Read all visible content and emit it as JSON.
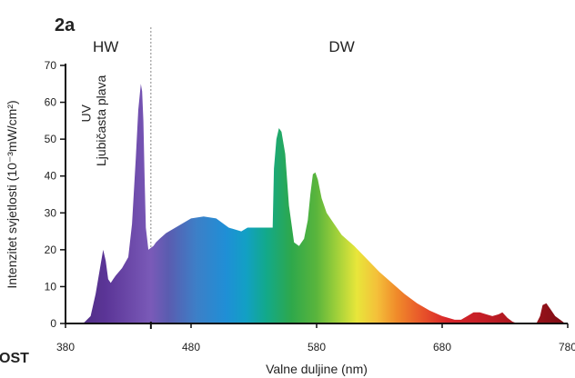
{
  "panel_label": "2a",
  "corner_fragment": "OST",
  "chart_data": {
    "type": "area",
    "title": "",
    "xlabel": "Valne duljine (nm)",
    "ylabel": "Intenzitet svjetlosti (10⁻³mW/cm²)",
    "xlim": [
      380,
      780
    ],
    "ylim": [
      0,
      70
    ],
    "x_ticks": [
      380,
      480,
      580,
      680,
      780
    ],
    "y_ticks": [
      0,
      10,
      20,
      30,
      40,
      50,
      60,
      70
    ],
    "divider_x": 448,
    "regions": [
      {
        "label": "HW",
        "x": 412
      },
      {
        "label": "DW",
        "x": 600
      }
    ],
    "band_labels": [
      {
        "label": "UV",
        "x": 400,
        "y": 57
      },
      {
        "label": "Ljubičasta plava",
        "x": 412,
        "y": 55
      }
    ],
    "series": [
      {
        "x": [
          390,
          395,
          400,
          404,
          408,
          410,
          412,
          414,
          416,
          418,
          420,
          425,
          430,
          433,
          436,
          438,
          440,
          441,
          442,
          443,
          444,
          446,
          448,
          450,
          452,
          455,
          460,
          470,
          480,
          490,
          500,
          510,
          520,
          525,
          530,
          540,
          545,
          546,
          548,
          550,
          552,
          555,
          558,
          562,
          566,
          570,
          573,
          575,
          577,
          579,
          581,
          584,
          588,
          594,
          600,
          610,
          620,
          630,
          640,
          650,
          660,
          670,
          680,
          690,
          695,
          700,
          705,
          710,
          715,
          720,
          725,
          728,
          732,
          736,
          740,
          745,
          750,
          755,
          758,
          760,
          763,
          766,
          770,
          774,
          778,
          780
        ],
        "y": [
          0,
          0.3,
          2,
          8,
          16,
          20,
          17,
          12,
          11,
          12,
          13,
          15,
          18,
          27,
          45,
          58,
          65,
          63,
          55,
          40,
          26,
          20,
          20.5,
          21,
          22,
          23,
          24.5,
          26.5,
          28.5,
          29,
          28.5,
          26,
          25,
          26,
          26,
          26,
          26,
          42,
          50,
          53,
          52,
          46,
          32,
          22,
          21,
          23,
          28,
          35,
          40.5,
          41,
          39,
          34,
          30,
          27,
          24,
          21,
          17.5,
          14,
          11,
          8,
          5.5,
          3.5,
          2,
          1,
          1,
          2,
          3,
          3,
          2.5,
          2,
          2.5,
          3,
          1.5,
          0.5,
          0,
          0,
          0,
          0,
          2,
          5,
          5.5,
          4,
          2,
          1,
          0,
          0
        ]
      }
    ]
  }
}
